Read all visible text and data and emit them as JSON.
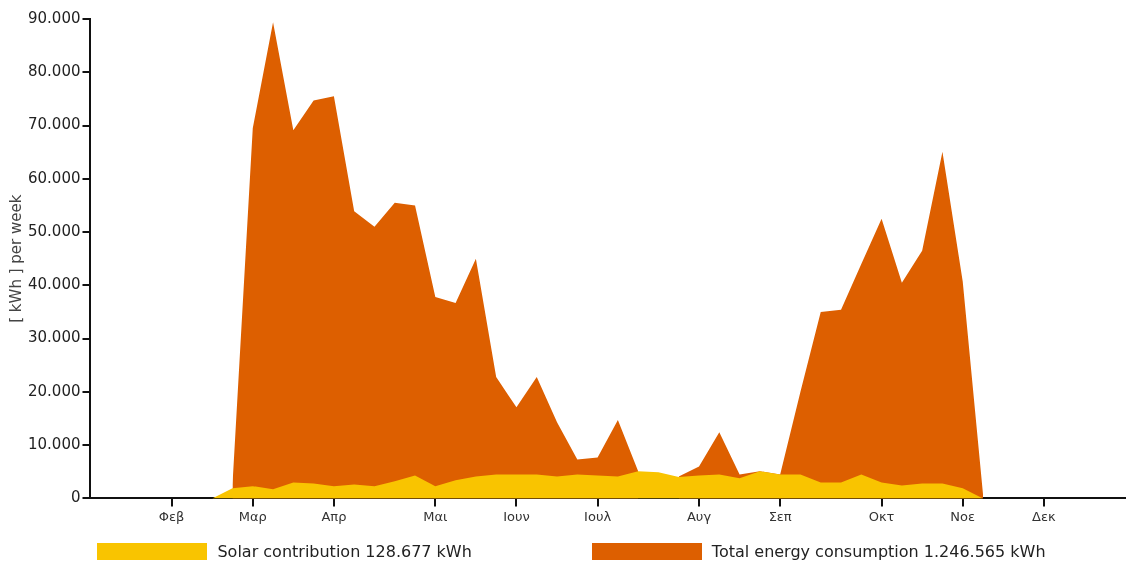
{
  "chart_data": {
    "type": "area",
    "ylabel": "[ kWh ] per week",
    "categories": [
      null,
      null,
      null,
      null,
      "Φεβ",
      null,
      null,
      null,
      "Μαρ",
      null,
      null,
      null,
      "Απρ",
      null,
      null,
      null,
      null,
      "Μαι",
      null,
      null,
      null,
      "Ιουν",
      null,
      null,
      null,
      "Ιουλ",
      null,
      null,
      null,
      null,
      "Αυγ",
      null,
      null,
      null,
      "Σεπ",
      null,
      null,
      null,
      null,
      "Οκτ",
      null,
      null,
      null,
      "Νοε",
      null,
      null,
      null,
      "Δεκ",
      null,
      null,
      null,
      null
    ],
    "ylim": [
      0,
      90000
    ],
    "yticks": [
      0,
      {
        "value": 10000,
        "label": "10.000"
      },
      {
        "value": 20000,
        "label": "20.000"
      },
      {
        "value": 30000,
        "label": "30.000"
      },
      {
        "value": 40000,
        "label": "40.000"
      },
      {
        "value": 50000,
        "label": "50.000"
      },
      {
        "value": 60000,
        "label": "60.000"
      },
      {
        "value": 70000,
        "label": "70.000"
      },
      {
        "value": 80000,
        "label": "80.000"
      },
      {
        "value": 90000,
        "label": "90.000"
      }
    ],
    "grid": false,
    "legend": "bottom",
    "series": [
      {
        "name": "Solar contribution 128.677 kWh",
        "color": "#f9c400",
        "values": [
          null,
          null,
          null,
          null,
          null,
          null,
          0,
          1900,
          2300,
          1700,
          3000,
          2800,
          2300,
          2600,
          2300,
          3200,
          4300,
          2300,
          3400,
          4100,
          4500,
          4500,
          4500,
          4100,
          4500,
          4300,
          4100,
          5100,
          4900,
          4000,
          4300,
          4500,
          3800,
          5100,
          4500,
          4500,
          3000,
          3000,
          4500,
          3000,
          2400,
          2800,
          2800,
          1900,
          0,
          null,
          null,
          null,
          null,
          null,
          null,
          null
        ]
      },
      {
        "name": "Total energy consumption 1.246.565 kWh",
        "color": "#dd5f00",
        "values": [
          null,
          null,
          null,
          null,
          null,
          null,
          null,
          2600,
          69500,
          89400,
          69100,
          74700,
          75500,
          53900,
          51000,
          55500,
          55000,
          37800,
          36700,
          45000,
          22800,
          17100,
          22800,
          14300,
          7300,
          7700,
          14700,
          5100,
          null,
          4100,
          6000,
          12400,
          4500,
          5100,
          4500,
          20000,
          35000,
          35400,
          44000,
          52500,
          40500,
          46500,
          65100,
          40700,
          800,
          null,
          null,
          null,
          null,
          null,
          null,
          null
        ]
      }
    ]
  }
}
